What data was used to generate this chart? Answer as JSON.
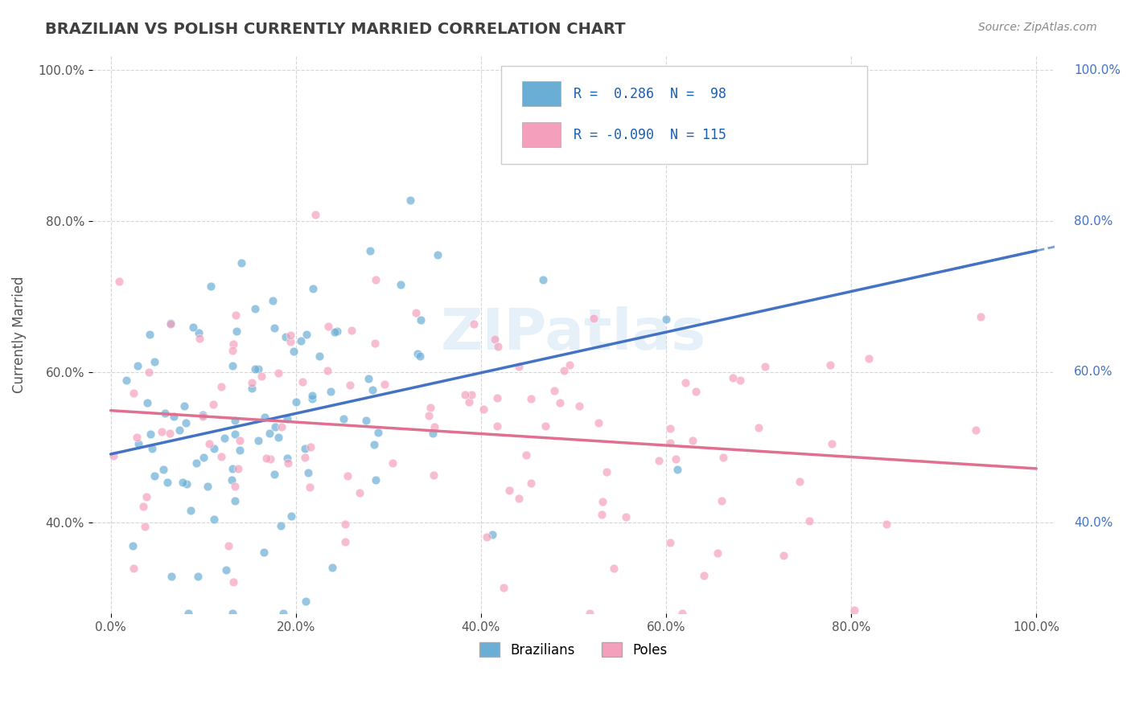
{
  "title": "BRAZILIAN VS POLISH CURRENTLY MARRIED CORRELATION CHART",
  "source": "Source: ZipAtlas.com",
  "ylabel": "Currently Married",
  "xlabel": "",
  "watermark": "ZIPatlas",
  "legend_entries": [
    {
      "label": "R =  0.286  N =  98",
      "color": "#a8c8f0"
    },
    {
      "label": "R = -0.090  N = 115",
      "color": "#f0a8c0"
    }
  ],
  "brazil_R": 0.286,
  "brazil_N": 98,
  "poland_R": -0.09,
  "poland_N": 115,
  "blue_color": "#6aaed6",
  "pink_color": "#f4a0bc",
  "blue_line_color": "#4472c4",
  "pink_line_color": "#e07090",
  "title_color": "#404040",
  "title_fontsize": 14,
  "xlim": [
    0.0,
    1.0
  ],
  "ylim": [
    0.0,
    1.0
  ],
  "xticklabels": [
    "0.0%",
    "20.0%",
    "40.0%",
    "60.0%",
    "80.0%",
    "100.0%"
  ],
  "yticklabels": [
    "40.0%",
    "60.0%",
    "80.0%",
    "100.0%"
  ],
  "ytick_positions": [
    0.4,
    0.6,
    0.8,
    1.0
  ],
  "xtick_positions": [
    0.0,
    0.2,
    0.4,
    0.6,
    0.8,
    1.0
  ]
}
